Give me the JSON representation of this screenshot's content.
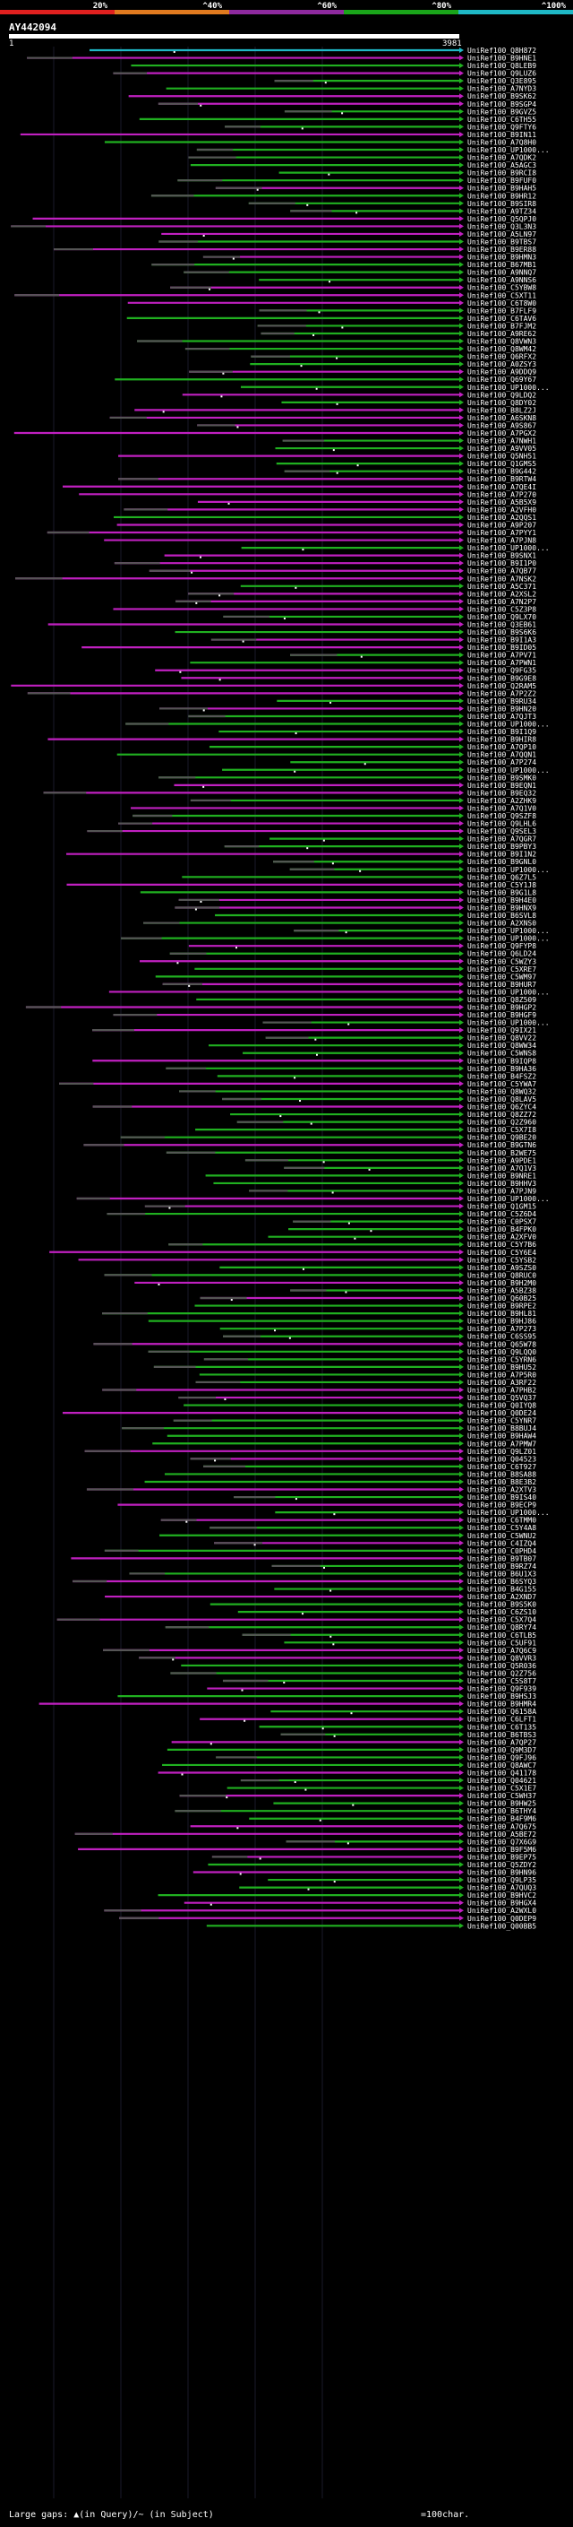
{
  "header": {
    "scale_labels": [
      "20%",
      "^40%",
      "^60%",
      "^80%",
      "^100%"
    ],
    "scale_colors": [
      "#e0201f",
      "#e07a1f",
      "#8e2a9e",
      "#1aa51a",
      "#1fb8c6"
    ],
    "query_title": "AY442094",
    "query_start": "1",
    "query_end": "3981"
  },
  "colors": {
    "identity_low": "#c020c0",
    "identity_mid": "#20b020",
    "identity_top": "#1fb8c6",
    "query": "#ffffff"
  },
  "hits": [
    "UniRef100_Q8H872",
    "UniRef100_B9HNE1",
    "UniRef100_Q8LEB9",
    "UniRef100_Q9LUZ6",
    "UniRef100_Q3E895",
    "UniRef100_A7NYD3",
    "UniRef100_B9SK62",
    "UniRef100_B9SGP4",
    "UniRef100_B9GVZ5",
    "UniRef100_C6TH55",
    "UniRef100_Q9FTY6",
    "UniRef100_B9IN11",
    "UniRef100_A7Q8H0",
    "UniRef100_UP1000...",
    "UniRef100_A7QDK2",
    "UniRef100_A5AGC3",
    "UniRef100_B9RCI8",
    "UniRef100_B9FUF0",
    "UniRef100_B9HAH5",
    "UniRef100_B9HR12",
    "UniRef100_B9SIR8",
    "UniRef100_A9TZ34",
    "UniRef100_Q5QPJ0",
    "UniRef100_Q3L3N3",
    "UniRef100_A5LN97",
    "UniRef100_B9TBS7",
    "UniRef100_B9ER88",
    "UniRef100_B9HMN3",
    "UniRef100_B67MB1",
    "UniRef100_A9NNQ7",
    "UniRef100_A9NNS6",
    "UniRef100_C5YBW8",
    "UniRef100_C5XT11",
    "UniRef100_C6T8W0",
    "UniRef100_B7FLF9",
    "UniRef100_C6TAV6",
    "UniRef100_B7FJM2",
    "UniRef100_A9RE62",
    "UniRef100_Q8VWN3",
    "UniRef100_Q8WM42",
    "UniRef100_Q6RFX2",
    "UniRef100_A0ZSY3",
    "UniRef100_A9DDQ9",
    "UniRef100_Q69Y67",
    "UniRef100_UP1000...",
    "UniRef100_Q9LDQ2",
    "UniRef100_Q8DY02",
    "UniRef100_B8LZ2J",
    "UniRef100_A6SKN8",
    "UniRef100_A9S867",
    "UniRef100_A7PGX2",
    "UniRef100_A7NWH1",
    "UniRef100_A9VV05",
    "UniRef100_Q5NH51",
    "UniRef100_Q1GMS5",
    "UniRef100_B9G442",
    "UniRef100_B9RTW4",
    "UniRef100_A7QE4I",
    "UniRef100_A7P270",
    "UniRef100_A5B5X9",
    "UniRef100_A2VFH0",
    "UniRef100_A2QQS1",
    "UniRef100_A9P207",
    "UniRef100_A7PYY1",
    "UniRef100_A7PJN8",
    "UniRef100_UP1000...",
    "UniRef100_B9SNX1",
    "UniRef100_B9I1P0",
    "UniRef100_A7QB77",
    "UniRef100_A7NSK2",
    "UniRef100_A5C371",
    "UniRef100_A2XSL2",
    "UniRef100_A7N2P7",
    "UniRef100_C5Z3P8",
    "UniRef100_Q9LX70",
    "UniRef100_Q3EB61",
    "UniRef100_B9S6K6",
    "UniRef100_B9I1A3",
    "UniRef100_B9ID05",
    "UniRef100_A7PV71",
    "UniRef100_A7PWN1",
    "UniRef100_Q9FG35",
    "UniRef100_B9G9E8",
    "UniRef100_Q2RAM5",
    "UniRef100_A7P2Z2",
    "UniRef100_B9RU34",
    "UniRef100_B9HN20",
    "UniRef100_A7QJT3",
    "UniRef100_UP1000...",
    "UniRef100_B9I1Q9",
    "UniRef100_B9HIR8",
    "UniRef100_A7QP10",
    "UniRef100_A7QQN1",
    "UniRef100_A7P274",
    "UniRef100_UP1000...",
    "UniRef100_B9SMK0",
    "UniRef100_B9EQN1",
    "UniRef100_B9EQ32",
    "UniRef100_A2ZHK9",
    "UniRef100_A7Q1V0",
    "UniRef100_Q9SZF8",
    "UniRef100_Q9LHL6",
    "UniRef100_Q9SEL3",
    "UniRef100_A7QGR7",
    "UniRef100_B9PBY3",
    "UniRef100_B9I1N2",
    "UniRef100_B9GNL0",
    "UniRef100_UP1000...",
    "UniRef100_Q6Z7L5",
    "UniRef100_C5Y1J8",
    "UniRef100_B9G1L8",
    "UniRef100_B9H4E0",
    "UniRef100_B9HNX9",
    "UniRef100_B6SVL8",
    "UniRef100_A2XNS0",
    "UniRef100_UP1000...",
    "UniRef100_UP1000...",
    "UniRef100_Q9FYP8",
    "UniRef100_Q6LD24",
    "UniRef100_C5WZY3",
    "UniRef100_C5XRE7",
    "UniRef100_C5WM97",
    "UniRef100_B9HUR7",
    "UniRef100_UP1000...",
    "UniRef100_Q8Z509",
    "UniRef100_B9HGP2",
    "UniRef100_B9HGF9",
    "UniRef100_UP1000...",
    "UniRef100_Q9IX21",
    "UniRef100_Q8VV22",
    "UniRef100_Q8WW34",
    "UniRef100_C5WNS8",
    "UniRef100_B9IQP8",
    "UniRef100_B9HA36",
    "UniRef100_B4FSZ2",
    "UniRef100_C5YWA7",
    "UniRef100_Q8WQ32",
    "UniRef100_Q8LAV5",
    "UniRef100_Q6ZYC4",
    "UniRef100_Q8ZZ72",
    "UniRef100_Q2Z960",
    "UniRef100_C5X7I8",
    "UniRef100_Q9BE20",
    "UniRef100_B9GTN6",
    "UniRef100_B2WE75",
    "UniRef100_A9PDE1",
    "UniRef100_A7Q1V3",
    "UniRef100_B9NRE1",
    "UniRef100_B9HHV3",
    "UniRef100_A7PJN9",
    "UniRef100_UP1000...",
    "UniRef100_Q1GM15",
    "UniRef100_C5Z6D4",
    "UniRef100_C0PSX7",
    "UniRef100_B4FPK0",
    "UniRef100_A2XFV0",
    "UniRef100_C5Y7B6",
    "UniRef100_C5Y6E4",
    "UniRef100_C5YSB2",
    "UniRef100_A9SZS0",
    "UniRef100_Q8RUC0",
    "UniRef100_B9H2M0",
    "UniRef100_A5BZ38",
    "UniRef100_Q60B25",
    "UniRef100_B9RPE2",
    "UniRef100_B9HL81",
    "UniRef100_B9HJ86",
    "UniRef100_A7P273",
    "UniRef100_C6SS95",
    "UniRef100_Q65W78",
    "UniRef100_Q9LQQ0",
    "UniRef100_C5YRN6",
    "UniRef100_B9HU52",
    "UniRef100_A7P5R0",
    "UniRef100_A3RF22",
    "UniRef100_A7PHB2",
    "UniRef100_Q5VQ37",
    "UniRef100_Q0IYQ8",
    "UniRef100_Q0DE24",
    "UniRef100_C5YNR7",
    "UniRef100_B8BUJ4",
    "UniRef100_B9HAW4",
    "UniRef100_A7PMW7",
    "UniRef100_Q9LZ01",
    "UniRef100_Q04523",
    "UniRef100_C6T927",
    "UniRef100_B8SA88",
    "UniRef100_B8E3B2",
    "UniRef100_A2XTV3",
    "UniRef100_B9IS40",
    "UniRef100_B9ECP9",
    "UniRef100_UP1000...",
    "UniRef100_C6TMM0",
    "UniRef100_C5Y4A8",
    "UniRef100_C5WNU2",
    "UniRef100_C4IZQ4",
    "UniRef100_C0PHD4",
    "UniRef100_B9TB07",
    "UniRef100_B9RZ74",
    "UniRef100_B6U1X3",
    "UniRef100_B6SYQ3",
    "UniRef100_B4G155",
    "UniRef100_A2XND7",
    "UniRef100_B9S5K0",
    "UniRef100_C6ZS10",
    "UniRef100_C5X7Q4",
    "UniRef100_Q8RY74",
    "UniRef100_C6TLB5",
    "UniRef100_C5UF91",
    "UniRef100_A7Q6C9",
    "UniRef100_Q8VVR3",
    "UniRef100_Q5R036",
    "UniRef100_Q2Z756",
    "UniRef100_C5S8T7",
    "UniRef100_Q9F939",
    "UniRef100_B9HSJ3",
    "UniRef100_B9HMR4",
    "UniRef100_Q6158A",
    "UniRef100_C6LFT1",
    "UniRef100_C6T135",
    "UniRef100_B6TBS3",
    "UniRef100_A7QP27",
    "UniRef100_Q9M3D7",
    "UniRef100_Q9FJ96",
    "UniRef100_Q8AWC7",
    "UniRef100_Q41178",
    "UniRef100_Q04621",
    "UniRef100_C5X1E7",
    "UniRef100_C5WH37",
    "UniRef100_B9HW25",
    "UniRef100_B6THY4",
    "UniRef100_B4F9M6",
    "UniRef100_A7Q675",
    "UniRef100_A5BE72",
    "UniRef100_Q7X6G9",
    "UniRef100_B9F5M6",
    "UniRef100_B9EP75",
    "UniRef100_Q5ZDY2",
    "UniRef100_B9HN96",
    "UniRef100_Q9LP35",
    "UniRef100_A7QUQ3",
    "UniRef100_B9HVC2",
    "UniRef100_B9HGX4",
    "UniRef100_A2WXL0",
    "UniRef100_Q0DEP9",
    "UniRef100_Q00BB5"
  ],
  "legend": {
    "text": "Large gaps: ▲(in Query)/~ (in Subject)",
    "scale_text": "=100char."
  }
}
